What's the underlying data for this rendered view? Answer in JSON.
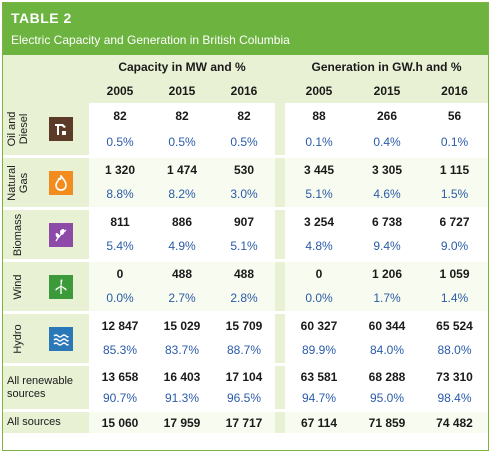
{
  "header": {
    "table_label": "TABLE 2",
    "title": "Electric Capacity and Generation in British Columbia"
  },
  "columns": {
    "capacity_group": "Capacity in MW and %",
    "generation_group": "Generation in GW.h and %",
    "years": [
      "2005",
      "2015",
      "2016",
      "2005",
      "2015",
      "2016"
    ]
  },
  "colors": {
    "brand_green": "#6cb33f",
    "pale_green": "#e8f1d4",
    "pct_blue": "#2a5ba8",
    "oil_icon": "#5b3a28",
    "gas_icon": "#f28c1f",
    "biomass_icon": "#8d4aa8",
    "wind_icon": "#3d9a3a",
    "hydro_icon": "#2b78b8"
  },
  "rows": [
    {
      "label": "Oil and\nDiesel",
      "icon": "oil-pump-icon",
      "values": [
        "82",
        "82",
        "82",
        "88",
        "266",
        "56"
      ],
      "percents": [
        "0.5%",
        "0.5%",
        "0.5%",
        "0.1%",
        "0.4%",
        "0.1%"
      ]
    },
    {
      "label": "Natural\nGas",
      "icon": "flame-icon",
      "values": [
        "1 320",
        "1 474",
        "530",
        "3 445",
        "3 305",
        "1 115"
      ],
      "percents": [
        "8.8%",
        "8.2%",
        "3.0%",
        "5.1%",
        "4.6%",
        "1.5%"
      ]
    },
    {
      "label": "Biomass",
      "icon": "leaf-icon",
      "values": [
        "811",
        "886",
        "907",
        "3 254",
        "6 738",
        "6 727"
      ],
      "percents": [
        "5.4%",
        "4.9%",
        "5.1%",
        "4.8%",
        "9.4%",
        "9.0%"
      ]
    },
    {
      "label": "Wind",
      "icon": "wind-turbine-icon",
      "values": [
        "0",
        "488",
        "488",
        "0",
        "1 206",
        "1 059"
      ],
      "percents": [
        "0.0%",
        "2.7%",
        "2.8%",
        "0.0%",
        "1.7%",
        "1.4%"
      ]
    },
    {
      "label": "Hydro",
      "icon": "water-waves-icon",
      "values": [
        "12 847",
        "15 029",
        "15 709",
        "60 327",
        "60 344",
        "65 524"
      ],
      "percents": [
        "85.3%",
        "83.7%",
        "88.7%",
        "89.9%",
        "84.0%",
        "88.0%"
      ]
    }
  ],
  "renewable": {
    "label": "All renewable sources",
    "values": [
      "13 658",
      "16 403",
      "17 104",
      "63 581",
      "68 288",
      "73 310"
    ],
    "percents": [
      "90.7%",
      "91.3%",
      "96.5%",
      "94.7%",
      "95.0%",
      "98.4%"
    ]
  },
  "all_sources": {
    "label": "All sources",
    "values": [
      "15 060",
      "17 959",
      "17 717",
      "67 114",
      "71 859",
      "74 482"
    ]
  }
}
